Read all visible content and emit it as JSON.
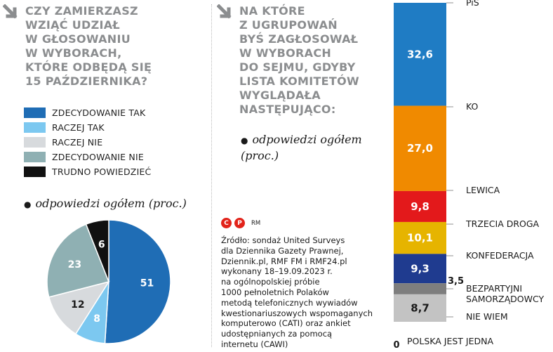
{
  "question1": {
    "title": "CZY ZAMIERZASZ\nWZIĄĆ UDZIAŁ\nW GŁOSOWANIU\nW WYBORACH,\nKTÓRE ODBĘDĄ SIĘ\n15 PAŹDZIERNIKA?",
    "subtitle": "odpowiedzi ogółem (proc.)"
  },
  "question2": {
    "title": "NA KTÓRE\nZ UGRUPOWAŃ\nBYŚ ZAGŁOSOWAŁ\nW WYBORACH\nDO SEJMU, GDYBY\nLISTA KOMITETÓW\nWYGLĄDAŁA\nNASTĘPUJĄCO:",
    "subtitle": "odpowiedzi ogółem\n(proc.)"
  },
  "license": {
    "c": "C",
    "p": "P",
    "text": "RM"
  },
  "source": "Źródło: sondaż United Surveys\ndla Dziennika Gazety Prawnej,\nDziennik.pl, RMF FM i RMF24.pl\nwykonany 18–19.09.2023 r.\nna ogólnopolskiej próbie\n1000 pełnoletnich Polaków\nmetodą telefonicznych wywiadów\nkwestionariuszowych wspomaganych\nkomputerowo (CATI) oraz ankiet\nudostępnianych za pomocą\ninternetu (CAWI)",
  "chart_data": [
    {
      "type": "pie",
      "categories": [
        "ZDECYDOWANIE TAK",
        "RACZEJ TAK",
        "RACZEJ NIE",
        "ZDECYDOWANIE NIE",
        "TRUDNO POWIEDZIEĆ"
      ],
      "values": [
        51,
        8,
        12,
        23,
        6
      ],
      "colors": [
        "#1f6db5",
        "#7cc8f0",
        "#d7dadd",
        "#8fb0b3",
        "#111111"
      ],
      "legend": "top"
    },
    {
      "type": "bar",
      "stacked": true,
      "orientation": "vertical",
      "categories": [
        "PiS",
        "KO",
        "LEWICA",
        "TRZECIA DROGA",
        "KONFEDERACJA",
        "BEZPARTYJNI SAMORZĄDOWCY",
        "NIE WIEM",
        "POLSKA JEST JEDNA"
      ],
      "values": [
        32.6,
        27.0,
        9.8,
        10.1,
        9.3,
        3.5,
        8.7,
        0
      ],
      "value_labels": [
        "32,6",
        "27,0",
        "9,8",
        "10,1",
        "9,3",
        "3,5",
        "8,7",
        "0"
      ],
      "colors": [
        "#1f7cc4",
        "#f08a00",
        "#e3191b",
        "#e6b400",
        "#1f3b8f",
        "#7e7e7e",
        "#c3c3c3",
        "#ffffff"
      ]
    }
  ]
}
